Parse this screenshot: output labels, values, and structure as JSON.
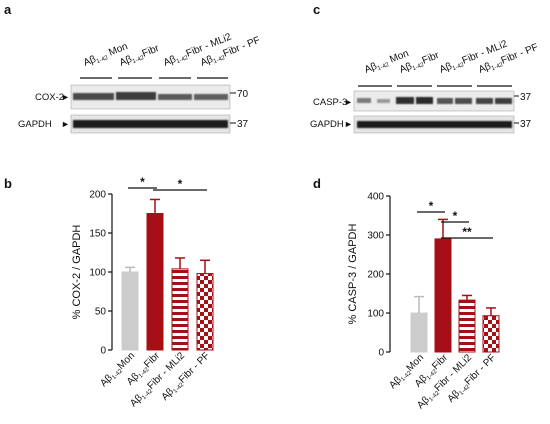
{
  "panels": {
    "a": "a",
    "b": "b",
    "c": "c",
    "d": "d"
  },
  "blot_a": {
    "lanes": [
      "Aβ1-42 Mon",
      "Aβ1-42 Fibr",
      "Aβ1-42 Fibr - MLi2",
      "Aβ1-42 Fibr - PF"
    ],
    "rows": [
      {
        "label": "COX-2",
        "marker": "70"
      },
      {
        "label": "GAPDH",
        "marker": "37"
      }
    ]
  },
  "blot_c": {
    "lanes": [
      "Aβ1-42 Mon",
      "Aβ1-42 Fibr",
      "Aβ1-42 Fibr - MLi2",
      "Aβ1-42 Fibr - PF"
    ],
    "rows": [
      {
        "label": "CASP-3",
        "marker": "37"
      },
      {
        "label": "GAPDH",
        "marker": "37"
      }
    ]
  },
  "colors": {
    "mon": "#cccccc",
    "fibr": "#a50f15",
    "error": "#a50f15"
  },
  "chart_data": [
    {
      "panel": "b",
      "type": "bar",
      "ylabel": "% COX-2 / GAPDH",
      "ylim": [
        0,
        200
      ],
      "yticks": [
        0,
        50,
        100,
        150,
        200
      ],
      "categories": [
        "Aβ1-42Mon",
        "Aβ1-42Fibr",
        "Aβ1-42Fibr - MLi2",
        "Aβ1-42Fibr - PF"
      ],
      "values": [
        100,
        175,
        104,
        98
      ],
      "errors": [
        6,
        18,
        14,
        17
      ],
      "fills": [
        "solid-grey",
        "solid-red",
        "stripes-red",
        "checker-red"
      ],
      "significance": [
        {
          "from": 0,
          "to": 1,
          "label": "*"
        },
        {
          "from": 1,
          "to": 3,
          "label": "*"
        }
      ]
    },
    {
      "panel": "d",
      "type": "bar",
      "ylabel": "% CASP-3 / GAPDH",
      "ylim": [
        0,
        400
      ],
      "yticks": [
        0,
        100,
        200,
        300,
        400
      ],
      "categories": [
        "Aβ1-42Mon",
        "Aβ1-42Fibr",
        "Aβ1-42Fibr - MLi2",
        "Aβ1-42Fibr - PF"
      ],
      "values": [
        100,
        290,
        133,
        93
      ],
      "errors": [
        42,
        50,
        12,
        20
      ],
      "fills": [
        "solid-grey",
        "solid-red",
        "stripes-red",
        "checker-red"
      ],
      "significance": [
        {
          "from": 0,
          "to": 1,
          "label": "*"
        },
        {
          "from": 1,
          "to": 2,
          "label": "*"
        },
        {
          "from": 1,
          "to": 3,
          "label": "**"
        }
      ]
    }
  ]
}
